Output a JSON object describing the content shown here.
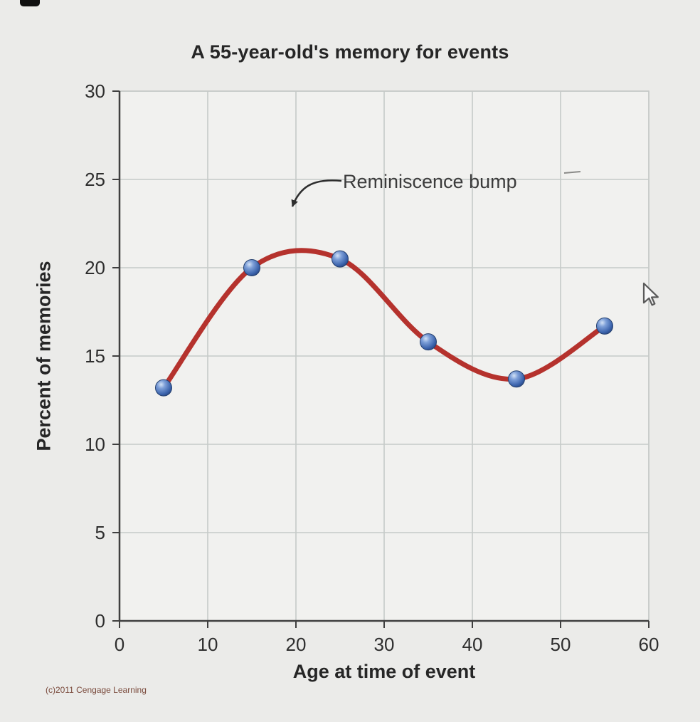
{
  "page": {
    "footer": "(c)2011 Cengage Learning"
  },
  "chart_data": {
    "type": "line",
    "title": "A 55-year-old's memory for events",
    "xlabel": "Age at time of event",
    "ylabel": "Percent of memories",
    "x": [
      5,
      15,
      25,
      35,
      45,
      55
    ],
    "y": [
      13.2,
      20.0,
      20.5,
      15.8,
      13.7,
      16.7
    ],
    "xlim": [
      0,
      60
    ],
    "ylim": [
      0,
      30
    ],
    "xticks": [
      0,
      10,
      20,
      30,
      40,
      50,
      60
    ],
    "yticks": [
      0,
      5,
      10,
      15,
      20,
      25,
      30
    ],
    "grid": true,
    "curve": "smooth",
    "annotation": {
      "text": "Reminiscence bump",
      "points_to": {
        "x": 20,
        "y": 22
      }
    },
    "colors": {
      "line": "#b5322d",
      "marker": "#3f6fb8",
      "grid": "#c6cac8",
      "axis": "#3f3f3f",
      "plot_bg": "#f1f1ef"
    }
  },
  "icons": {
    "cursor": "mouse-cursor-icon"
  }
}
